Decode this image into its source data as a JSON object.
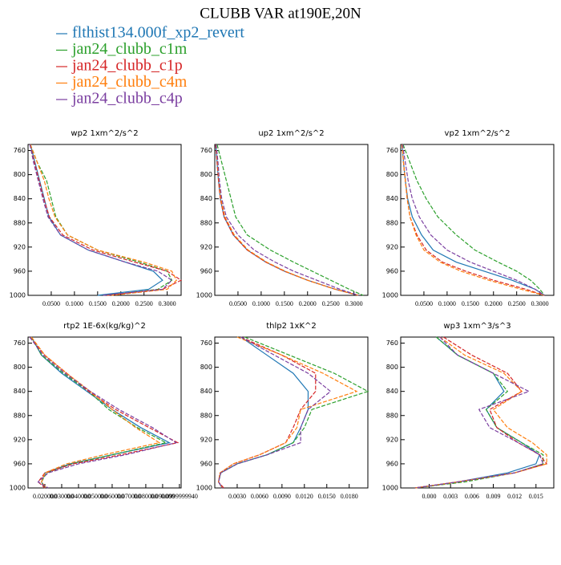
{
  "title": "CLUBB VAR at190E,20N",
  "series": [
    {
      "name": "flthist134.000f_xp2_revert",
      "color": "#1f77b4",
      "style": "solid"
    },
    {
      "name": "jan24_clubb_c1m",
      "color": "#2ca02c",
      "style": "dashed"
    },
    {
      "name": "jan24_clubb_c1p",
      "color": "#d62728",
      "style": "dashed"
    },
    {
      "name": "jan24_clubb_c4m",
      "color": "#ff7f0e",
      "style": "dashed"
    },
    {
      "name": "jan24_clubb_c4p",
      "color": "#7b3fa0",
      "style": "dashed"
    }
  ],
  "chart_data": [
    {
      "type": "line",
      "title": "wp2  1xm^2/s^2",
      "y": [
        750,
        780,
        810,
        840,
        870,
        900,
        925,
        945,
        960,
        975,
        990,
        1000
      ],
      "ylim": [
        750,
        1000
      ],
      "yreverse": true,
      "yticks": [
        760,
        800,
        840,
        880,
        920,
        960,
        1000
      ],
      "xlim": [
        0,
        0.33
      ],
      "xticks": [
        {
          "value": 0.05,
          "label": "0.0500"
        },
        {
          "value": 0.1,
          "label": "0.1000"
        },
        {
          "value": 0.15,
          "label": "0.1500"
        },
        {
          "value": 0.2,
          "label": "0.2000"
        },
        {
          "value": 0.25,
          "label": "0.2500"
        },
        {
          "value": 0.3,
          "label": "0.3000"
        }
      ],
      "series": [
        {
          "values": [
            0.005,
            0.015,
            0.025,
            0.035,
            0.045,
            0.07,
            0.13,
            0.21,
            0.27,
            0.29,
            0.26,
            0.15
          ]
        },
        {
          "values": [
            0.005,
            0.02,
            0.04,
            0.05,
            0.06,
            0.085,
            0.15,
            0.24,
            0.3,
            0.31,
            0.28,
            0.17
          ]
        },
        {
          "values": [
            0.004,
            0.014,
            0.024,
            0.034,
            0.046,
            0.075,
            0.14,
            0.23,
            0.3,
            0.33,
            0.29,
            0.17
          ]
        },
        {
          "values": [
            0.005,
            0.02,
            0.035,
            0.045,
            0.058,
            0.085,
            0.15,
            0.25,
            0.31,
            0.32,
            0.3,
            0.18
          ]
        },
        {
          "values": [
            0.004,
            0.012,
            0.022,
            0.032,
            0.043,
            0.07,
            0.13,
            0.21,
            0.28,
            0.31,
            0.29,
            0.16
          ]
        }
      ]
    },
    {
      "type": "line",
      "title": "up2  1xm^2/s^2",
      "y": [
        750,
        780,
        810,
        840,
        870,
        900,
        925,
        945,
        960,
        975,
        990,
        1000
      ],
      "ylim": [
        750,
        1000
      ],
      "yreverse": true,
      "yticks": [
        760,
        800,
        840,
        880,
        920,
        960,
        1000
      ],
      "xlim": [
        0,
        0.33
      ],
      "xticks": [
        {
          "value": 0.05,
          "label": "0.0500"
        },
        {
          "value": 0.1,
          "label": "0.1000"
        },
        {
          "value": 0.15,
          "label": "0.1500"
        },
        {
          "value": 0.2,
          "label": "0.2000"
        },
        {
          "value": 0.25,
          "label": "0.2500"
        },
        {
          "value": 0.3,
          "label": "0.3000"
        }
      ],
      "series": [
        {
          "values": [
            0.002,
            0.005,
            0.008,
            0.012,
            0.02,
            0.04,
            0.07,
            0.11,
            0.15,
            0.2,
            0.26,
            0.31
          ]
        },
        {
          "values": [
            0.005,
            0.015,
            0.025,
            0.035,
            0.045,
            0.07,
            0.12,
            0.17,
            0.21,
            0.25,
            0.29,
            0.32
          ]
        },
        {
          "values": [
            0.002,
            0.005,
            0.008,
            0.012,
            0.02,
            0.04,
            0.07,
            0.11,
            0.15,
            0.2,
            0.26,
            0.31
          ]
        },
        {
          "values": [
            0.003,
            0.006,
            0.009,
            0.013,
            0.022,
            0.042,
            0.072,
            0.112,
            0.152,
            0.2,
            0.26,
            0.31
          ]
        },
        {
          "values": [
            0.003,
            0.007,
            0.01,
            0.015,
            0.025,
            0.05,
            0.085,
            0.13,
            0.17,
            0.22,
            0.27,
            0.31
          ]
        }
      ]
    },
    {
      "type": "line",
      "title": "vp2  1xm^2/s^2",
      "y": [
        750,
        780,
        810,
        840,
        870,
        900,
        925,
        945,
        960,
        975,
        990,
        1000
      ],
      "ylim": [
        750,
        1000
      ],
      "yreverse": true,
      "yticks": [
        760,
        800,
        840,
        880,
        920,
        960,
        1000
      ],
      "xlim": [
        0,
        0.33
      ],
      "xticks": [
        {
          "value": 0.05,
          "label": "0.0500"
        },
        {
          "value": 0.1,
          "label": "0.1000"
        },
        {
          "value": 0.15,
          "label": "0.1500"
        },
        {
          "value": 0.2,
          "label": "0.2000"
        },
        {
          "value": 0.25,
          "label": "0.2500"
        },
        {
          "value": 0.3,
          "label": "0.3000"
        }
      ],
      "series": [
        {
          "values": [
            0.003,
            0.006,
            0.01,
            0.015,
            0.025,
            0.045,
            0.07,
            0.12,
            0.18,
            0.24,
            0.29,
            0.31
          ]
        },
        {
          "values": [
            0.005,
            0.02,
            0.035,
            0.055,
            0.08,
            0.12,
            0.16,
            0.21,
            0.25,
            0.28,
            0.3,
            0.31
          ]
        },
        {
          "values": [
            0.003,
            0.006,
            0.01,
            0.014,
            0.02,
            0.035,
            0.055,
            0.09,
            0.14,
            0.2,
            0.27,
            0.31
          ]
        },
        {
          "values": [
            0.003,
            0.006,
            0.01,
            0.014,
            0.02,
            0.033,
            0.05,
            0.085,
            0.13,
            0.19,
            0.26,
            0.31
          ]
        },
        {
          "values": [
            0.004,
            0.01,
            0.016,
            0.025,
            0.04,
            0.065,
            0.1,
            0.15,
            0.2,
            0.25,
            0.29,
            0.31
          ]
        }
      ]
    },
    {
      "type": "line",
      "title": "rtp2  1E-6x(kg/kg)^2",
      "y": [
        750,
        780,
        810,
        840,
        870,
        900,
        925,
        945,
        960,
        975,
        990,
        1000
      ],
      "ylim": [
        750,
        1000
      ],
      "yreverse": true,
      "yticks": [
        760,
        800,
        840,
        880,
        920,
        960,
        1000
      ],
      "xlim": [
        0.01,
        0.101
      ],
      "xticks": [
        {
          "value": 0.02,
          "label": "0.020000"
        },
        {
          "value": 0.03,
          "label": "0.030000"
        },
        {
          "value": 0.04,
          "label": "0.040000"
        },
        {
          "value": 0.05,
          "label": "0.050000"
        },
        {
          "value": 0.06,
          "label": "0.060000"
        },
        {
          "value": 0.07,
          "label": "0.070000"
        },
        {
          "value": 0.08,
          "label": "0.080000"
        },
        {
          "value": 0.09,
          "label": "0.090000"
        },
        {
          "value": 0.1,
          "label": "0.0999999940"
        }
      ],
      "series": [
        {
          "values": [
            0.012,
            0.018,
            0.03,
            0.045,
            0.06,
            0.077,
            0.094,
            0.06,
            0.035,
            0.02,
            0.018,
            0.02
          ]
        },
        {
          "values": [
            0.012,
            0.018,
            0.031,
            0.046,
            0.058,
            0.075,
            0.092,
            0.06,
            0.036,
            0.021,
            0.018,
            0.02
          ]
        },
        {
          "values": [
            0.011,
            0.02,
            0.033,
            0.046,
            0.062,
            0.082,
            0.099,
            0.065,
            0.037,
            0.02,
            0.016,
            0.02
          ]
        },
        {
          "values": [
            0.012,
            0.02,
            0.033,
            0.047,
            0.06,
            0.074,
            0.088,
            0.055,
            0.033,
            0.02,
            0.018,
            0.021
          ]
        },
        {
          "values": [
            0.011,
            0.019,
            0.032,
            0.047,
            0.064,
            0.084,
            0.098,
            0.068,
            0.04,
            0.022,
            0.016,
            0.022
          ]
        }
      ]
    },
    {
      "type": "line",
      "title": "thlp2  1xK^2",
      "y": [
        750,
        780,
        810,
        840,
        870,
        900,
        925,
        945,
        960,
        975,
        990,
        1000
      ],
      "ylim": [
        750,
        1000
      ],
      "yreverse": true,
      "yticks": [
        760,
        800,
        840,
        880,
        920,
        960,
        1000
      ],
      "xlim": [
        0,
        0.0205
      ],
      "xticks": [
        {
          "value": 0.003,
          "label": "0.0030"
        },
        {
          "value": 0.006,
          "label": "0.0060"
        },
        {
          "value": 0.009,
          "label": "0.0090"
        },
        {
          "value": 0.012,
          "label": "0.0120"
        },
        {
          "value": 0.015,
          "label": "0.0150"
        },
        {
          "value": 0.018,
          "label": "0.0180"
        }
      ],
      "series": [
        {
          "values": [
            0.0035,
            0.007,
            0.0105,
            0.0125,
            0.0125,
            0.0115,
            0.0105,
            0.007,
            0.003,
            0.0008,
            0.0005,
            0.001
          ]
        },
        {
          "values": [
            0.004,
            0.01,
            0.016,
            0.0205,
            0.013,
            0.012,
            0.0105,
            0.007,
            0.003,
            0.0008,
            0.0005,
            0.001
          ]
        },
        {
          "values": [
            0.0035,
            0.009,
            0.0135,
            0.0135,
            0.0115,
            0.0105,
            0.0095,
            0.006,
            0.0025,
            0.0007,
            0.0005,
            0.0012
          ]
        },
        {
          "values": [
            0.003,
            0.009,
            0.0145,
            0.019,
            0.0115,
            0.011,
            0.0095,
            0.006,
            0.0025,
            0.0007,
            0.0005,
            0.001
          ]
        },
        {
          "values": [
            0.0035,
            0.008,
            0.0125,
            0.0155,
            0.0125,
            0.0115,
            0.0115,
            0.007,
            0.003,
            0.0008,
            0.0005,
            0.001
          ]
        }
      ]
    },
    {
      "type": "line",
      "title": "wp3  1xm^3/s^3",
      "y": [
        750,
        780,
        810,
        840,
        870,
        900,
        925,
        945,
        960,
        975,
        990,
        1000
      ],
      "ylim": [
        750,
        1000
      ],
      "yreverse": true,
      "yticks": [
        760,
        800,
        840,
        880,
        920,
        960,
        1000
      ],
      "xlim": [
        -0.004,
        0.0175
      ],
      "xticks": [
        {
          "value": 0,
          "label": "0.000"
        },
        {
          "value": 0.003,
          "label": "0.003"
        },
        {
          "value": 0.006,
          "label": "0.006"
        },
        {
          "value": 0.009,
          "label": "0.009"
        },
        {
          "value": 0.012,
          "label": "0.012"
        },
        {
          "value": 0.015,
          "label": "0.015"
        }
      ],
      "series": [
        {
          "values": [
            0.001,
            0.004,
            0.009,
            0.0105,
            0.008,
            0.0095,
            0.013,
            0.0155,
            0.015,
            0.011,
            0.004,
            -0.002
          ]
        },
        {
          "values": [
            0.001,
            0.004,
            0.009,
            0.011,
            0.008,
            0.0095,
            0.013,
            0.016,
            0.016,
            0.012,
            0.005,
            -0.002
          ]
        },
        {
          "values": [
            0.002,
            0.006,
            0.011,
            0.013,
            0.0085,
            0.0095,
            0.0125,
            0.0155,
            0.0165,
            0.012,
            0.004,
            -0.002
          ]
        },
        {
          "values": [
            0.0015,
            0.005,
            0.0105,
            0.013,
            0.009,
            0.011,
            0.0145,
            0.0165,
            0.0165,
            0.012,
            0.004,
            -0.002
          ]
        },
        {
          "values": [
            0.0015,
            0.004,
            0.009,
            0.014,
            0.007,
            0.0085,
            0.0125,
            0.0155,
            0.016,
            0.012,
            0.004,
            -0.002
          ]
        }
      ]
    }
  ]
}
